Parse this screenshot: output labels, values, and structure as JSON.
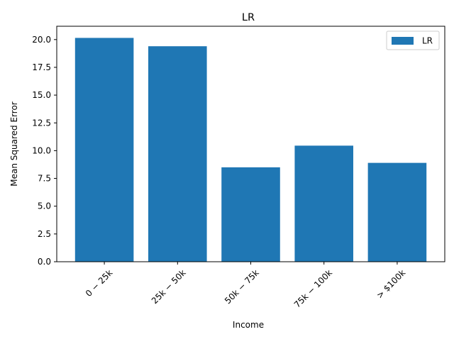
{
  "chart_data": {
    "type": "bar",
    "title": "LR",
    "xlabel": "Income",
    "ylabel": "Mean Squared Error",
    "categories": [
      "$0-$25k",
      "$25k-$50k",
      "$50k-$75k",
      "$75k-$100k",
      "> $100k"
    ],
    "category_labels": [
      "0 − 25k",
      "25k − 50k",
      "50k − 75k",
      "75k − 100k",
      "> $100k"
    ],
    "series": [
      {
        "name": "LR",
        "values": [
          20.15,
          19.4,
          8.5,
          10.45,
          8.9
        ],
        "color": "#1f77b4"
      }
    ],
    "ylim": [
      0,
      21.2
    ],
    "yticks": [
      0.0,
      2.5,
      5.0,
      7.5,
      10.0,
      12.5,
      15.0,
      17.5,
      20.0
    ],
    "ytick_labels": [
      "0.0",
      "2.5",
      "5.0",
      "7.5",
      "10.0",
      "12.5",
      "15.0",
      "17.5",
      "20.0"
    ],
    "grid": false,
    "legend": {
      "placement": "top-right",
      "entries": [
        "LR"
      ]
    },
    "xtick_rotation_deg": 45
  }
}
